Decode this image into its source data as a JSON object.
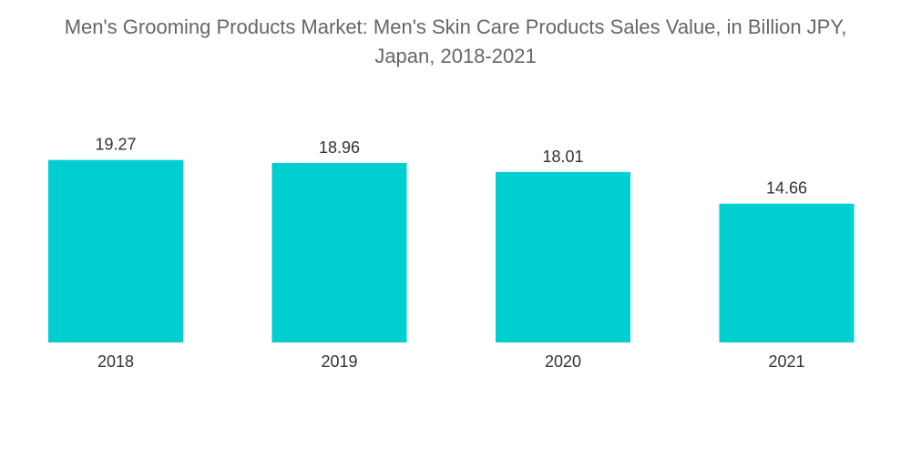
{
  "title": {
    "line1": "Men's Grooming Products Market: Men's Skin Care Products Sales Value, in Billion JPY,",
    "line2": "Japan, 2018-2021"
  },
  "colors": {
    "bar": "#00CED1",
    "title": "#666666",
    "labels": "#333333"
  },
  "chart_data": {
    "type": "bar",
    "title": "Men's Grooming Products Market: Men's Skin Care Products Sales Value, in Billion JPY, Japan, 2018-2021",
    "categories": [
      "2018",
      "2019",
      "2020",
      "2021"
    ],
    "values": [
      19.27,
      18.96,
      18.01,
      14.66
    ],
    "value_labels": [
      "19.27",
      "18.96",
      "18.01",
      "14.66"
    ],
    "xlabel": "",
    "ylabel": "",
    "ylim": [
      0,
      20.4
    ],
    "grid": false,
    "legend": "none"
  }
}
